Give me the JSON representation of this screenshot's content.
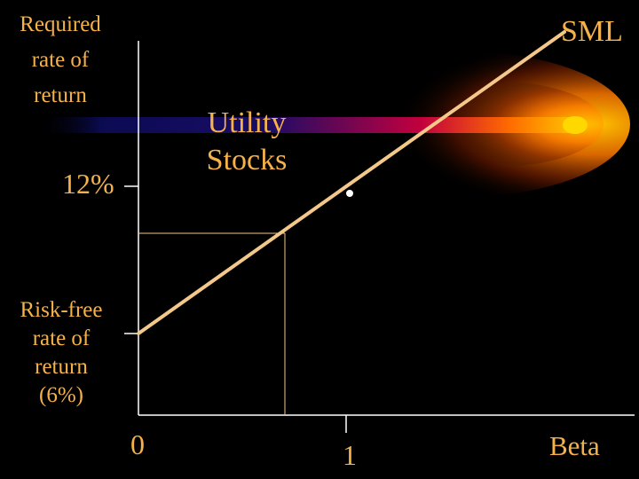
{
  "diagram": {
    "y_axis_label": [
      "Required",
      "rate of",
      "return"
    ],
    "tick_12": "12%",
    "risk_free_label": [
      "Risk-free",
      "rate of",
      "return",
      "(6%)"
    ],
    "line_label": "SML",
    "point_label": [
      "Utility",
      "Stocks"
    ],
    "x_tick_zero": "0",
    "x_tick_one": "1",
    "x_axis_label": "Beta"
  },
  "colors": {
    "background": "#000000",
    "text": "#f6b24a",
    "sml_line": "#f4c78a",
    "axis": "#ffffff",
    "comet_head": "#ffb000",
    "comet_mid": "#c2003e",
    "comet_tail": "#0c0b5c"
  }
}
